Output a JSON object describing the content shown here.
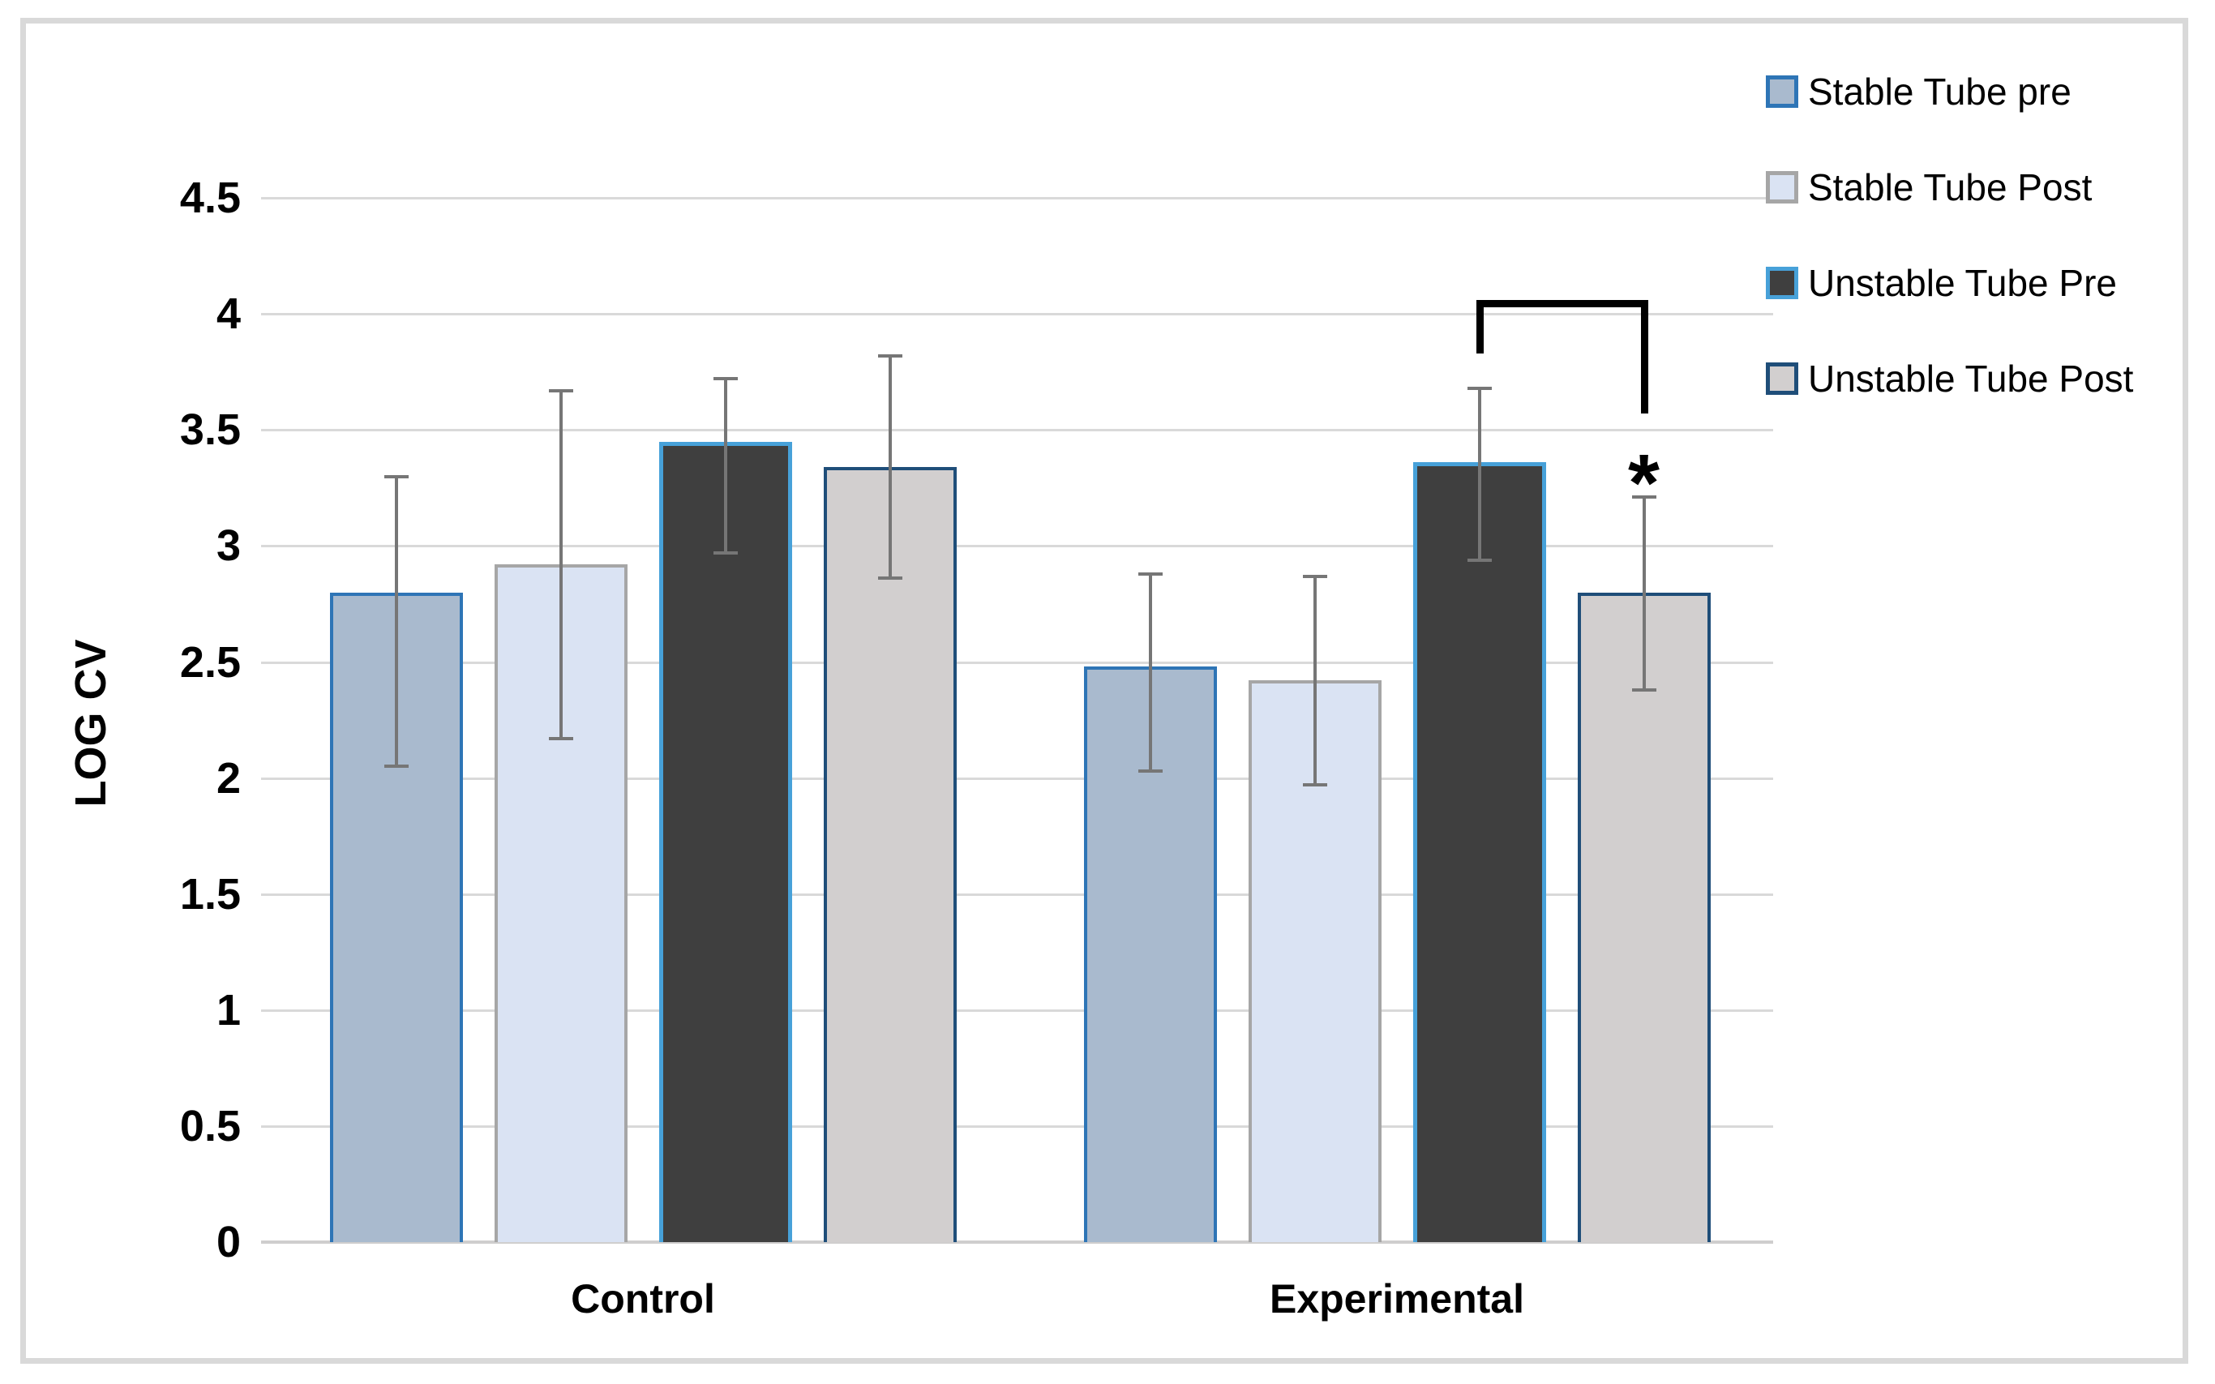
{
  "figure": {
    "background": "#ffffff",
    "border_color": "#d9d9d9"
  },
  "chart_data": {
    "type": "bar",
    "title": "",
    "xlabel": "",
    "ylabel": "LOG CV",
    "ylim": [
      0,
      4.5
    ],
    "ytick_step": 0.5,
    "ytick_labels": [
      "0",
      "0.5",
      "1",
      "1.5",
      "2",
      "2.5",
      "3",
      "3.5",
      "4",
      "4.5"
    ],
    "grid": "horizontal",
    "legend_position": "right-top",
    "categories": [
      "Control",
      "Experimental"
    ],
    "series": [
      {
        "name": "Stable Tube pre",
        "fill": "#a9bace",
        "border": "#2e75b6",
        "values": [
          2.8,
          2.48
        ],
        "error_high": [
          3.3,
          2.88
        ],
        "error_low": [
          2.05,
          2.03
        ]
      },
      {
        "name": "Stable Tube Post",
        "fill": "#dae3f3",
        "border": "#a6a6a6",
        "values": [
          2.92,
          2.42
        ],
        "error_high": [
          3.67,
          2.87
        ],
        "error_low": [
          2.17,
          1.97
        ]
      },
      {
        "name": "Unstable Tube Pre",
        "fill": "#3f3f3f",
        "border": "#47a1d9",
        "values": [
          3.45,
          3.36
        ],
        "error_high": [
          3.72,
          3.68
        ],
        "error_low": [
          2.97,
          2.94
        ]
      },
      {
        "name": "Unstable Tube Post",
        "fill": "#d2cfcf",
        "border": "#1f4e79",
        "values": [
          3.34,
          2.8
        ],
        "error_high": [
          3.82,
          3.21
        ],
        "error_low": [
          2.86,
          2.38
        ]
      }
    ],
    "colors": {
      "gridline": "#d9d9d9",
      "axis_line": "#cfcece",
      "error_bar": "#767676",
      "bracket": "#000000",
      "text": "#000000"
    },
    "annotations": {
      "significance_bracket": {
        "group": "Experimental",
        "between_series": [
          "Unstable Tube Pre",
          "Unstable Tube Post"
        ],
        "top_value": 4.06,
        "left_drop_value": 3.83,
        "right_drop_value": 3.57
      },
      "star": {
        "label": "*",
        "group": "Experimental",
        "series": "Unstable Tube Post",
        "value": 3.3
      }
    }
  }
}
